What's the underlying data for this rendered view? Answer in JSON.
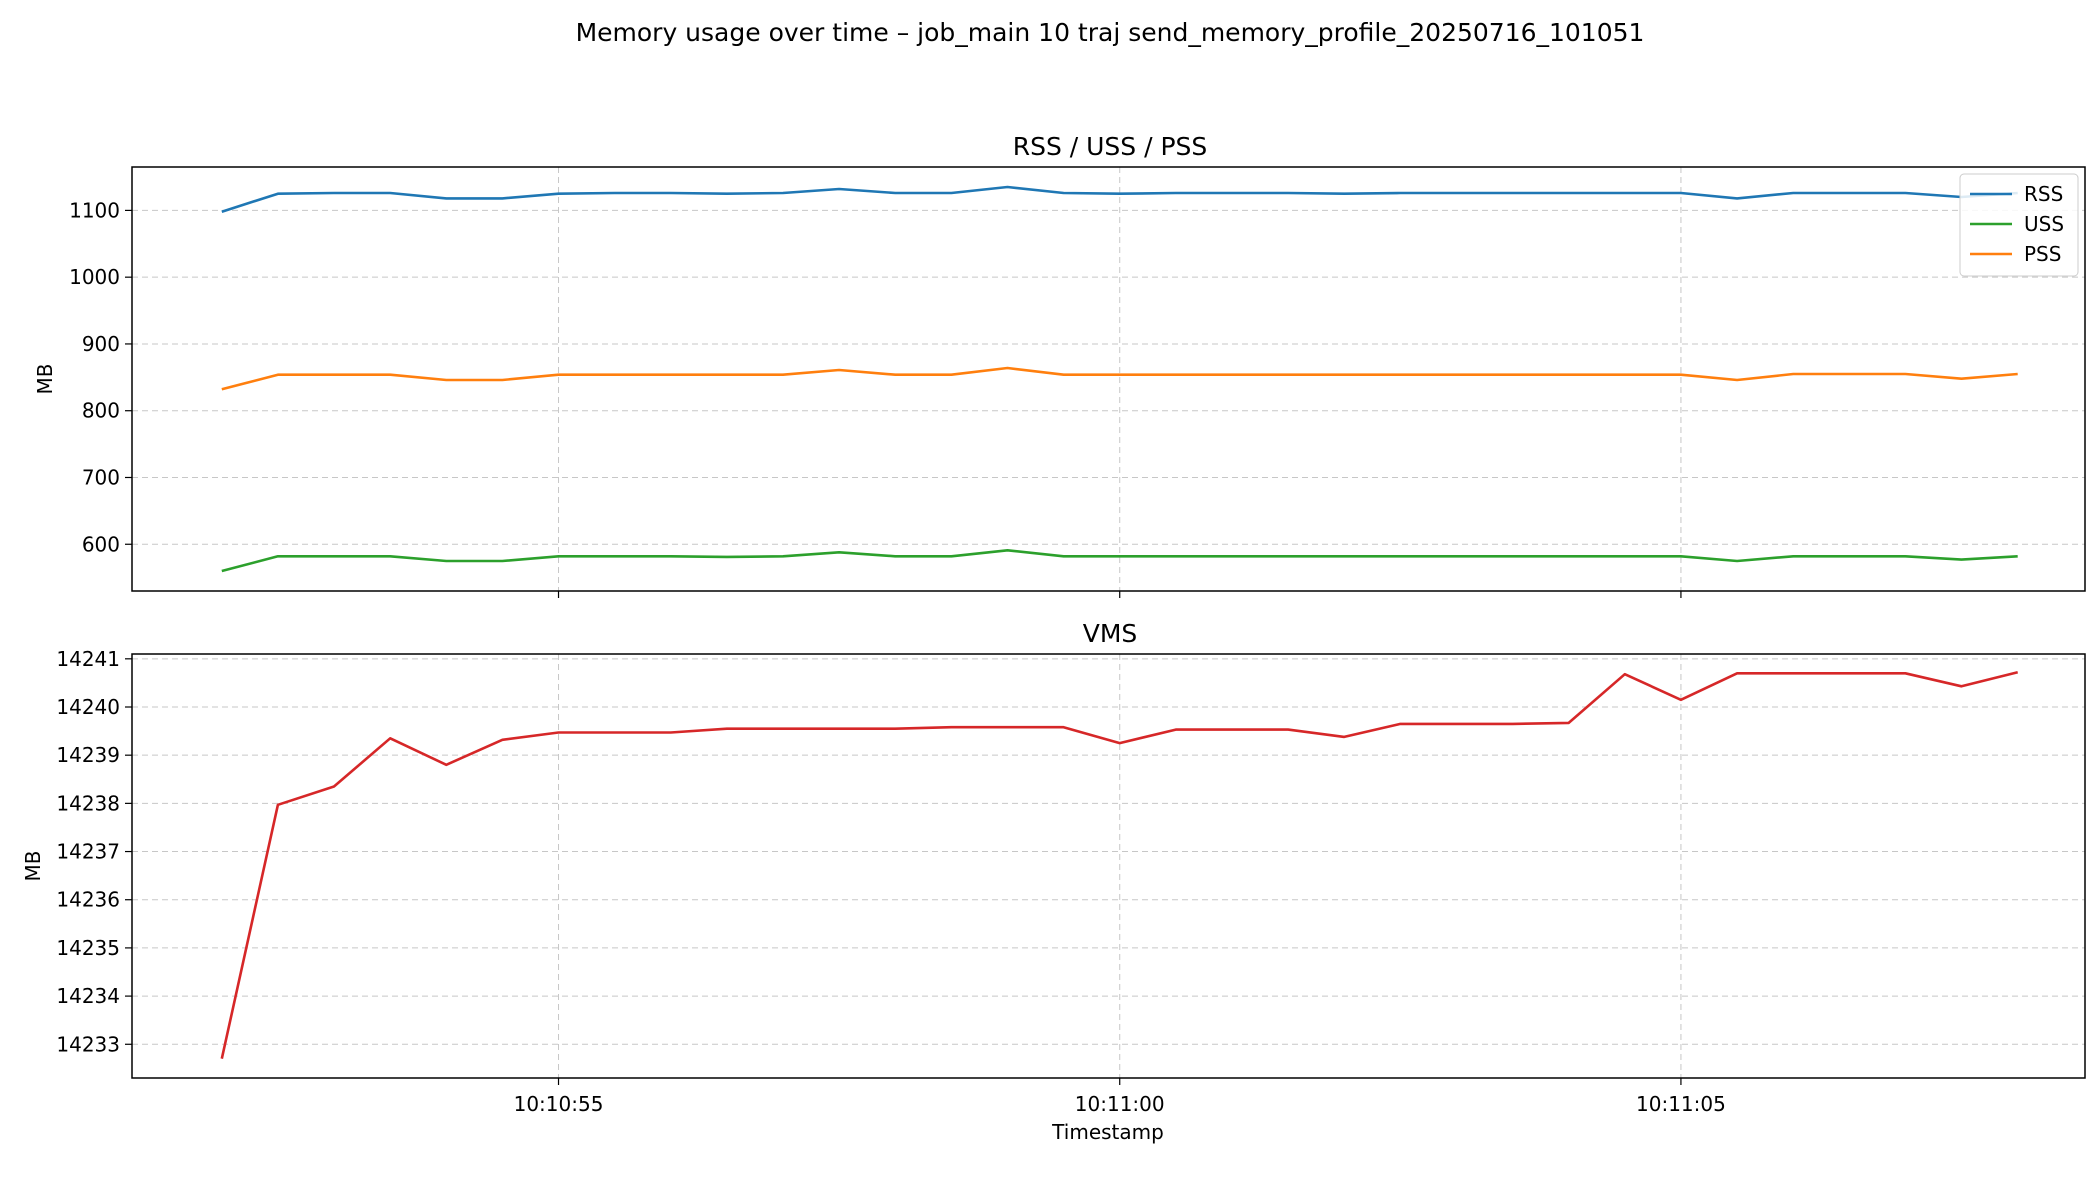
{
  "figure": {
    "suptitle": "Memory usage over time – job_main 10 traj send_memory_profile_20250716_101051",
    "xlabel": "Timestamp"
  },
  "chart_data": [
    {
      "type": "line",
      "title": "RSS / USS / PSS",
      "xlabel": "",
      "ylabel": "MB",
      "xlim": [
        "10:10:51.2",
        "10:11:08.6"
      ],
      "ylim": [
        530,
        1165
      ],
      "yticks": [
        600,
        700,
        800,
        900,
        1000,
        1100
      ],
      "grid": true,
      "legend": "top-right",
      "x": [
        "10:10:52.0",
        "10:10:52.5",
        "10:10:53.0",
        "10:10:53.5",
        "10:10:54.0",
        "10:10:54.5",
        "10:10:55.0",
        "10:10:55.5",
        "10:10:56.0",
        "10:10:56.5",
        "10:10:57.0",
        "10:10:57.5",
        "10:10:58.0",
        "10:10:58.5",
        "10:10:59.0",
        "10:10:59.5",
        "10:11:00.0",
        "10:11:00.5",
        "10:11:01.0",
        "10:11:01.5",
        "10:11:02.0",
        "10:11:02.5",
        "10:11:03.0",
        "10:11:03.5",
        "10:11:04.0",
        "10:11:04.5",
        "10:11:05.0",
        "10:11:05.5",
        "10:11:06.0",
        "10:11:06.5",
        "10:11:07.0",
        "10:11:07.5",
        "10:11:08.0"
      ],
      "series": [
        {
          "name": "RSS",
          "color": "#1f77b4",
          "values": [
            1098,
            1125,
            1126,
            1126,
            1118,
            1118,
            1125,
            1126,
            1126,
            1125,
            1126,
            1132,
            1126,
            1126,
            1135,
            1126,
            1125,
            1126,
            1126,
            1126,
            1125,
            1126,
            1126,
            1126,
            1126,
            1126,
            1126,
            1118,
            1126,
            1126,
            1126,
            1120,
            1126
          ]
        },
        {
          "name": "USS",
          "color": "#2ca02c",
          "values": [
            560,
            582,
            582,
            582,
            575,
            575,
            582,
            582,
            582,
            581,
            582,
            588,
            582,
            582,
            591,
            582,
            582,
            582,
            582,
            582,
            582,
            582,
            582,
            582,
            582,
            582,
            582,
            575,
            582,
            582,
            582,
            577,
            582
          ]
        },
        {
          "name": "PSS",
          "color": "#ff7f0e",
          "values": [
            832,
            854,
            854,
            854,
            846,
            846,
            854,
            854,
            854,
            854,
            854,
            861,
            854,
            854,
            864,
            854,
            854,
            854,
            854,
            854,
            854,
            854,
            854,
            854,
            854,
            854,
            854,
            846,
            855,
            855,
            855,
            848,
            855
          ]
        }
      ]
    },
    {
      "type": "line",
      "title": "VMS",
      "xlabel": "Timestamp",
      "ylabel": "MB",
      "xlim": [
        "10:10:51.2",
        "10:11:08.6"
      ],
      "ylim": [
        14232.3,
        14241.1
      ],
      "yticks": [
        14233,
        14234,
        14235,
        14236,
        14237,
        14238,
        14239,
        14240,
        14241
      ],
      "xticks": [
        "10:10:55",
        "10:11:00",
        "10:11:05"
      ],
      "grid": true,
      "x": [
        "10:10:52.0",
        "10:10:52.5",
        "10:10:53.0",
        "10:10:53.5",
        "10:10:54.0",
        "10:10:54.5",
        "10:10:55.0",
        "10:10:55.5",
        "10:10:56.0",
        "10:10:56.5",
        "10:10:57.0",
        "10:10:57.5",
        "10:10:58.0",
        "10:10:58.5",
        "10:10:59.0",
        "10:10:59.5",
        "10:11:00.0",
        "10:11:00.5",
        "10:11:01.0",
        "10:11:01.5",
        "10:11:02.0",
        "10:11:02.5",
        "10:11:03.0",
        "10:11:03.5",
        "10:11:04.0",
        "10:11:04.5",
        "10:11:05.0",
        "10:11:05.5",
        "10:11:06.0",
        "10:11:06.5",
        "10:11:07.0",
        "10:11:07.5",
        "10:11:08.0"
      ],
      "series": [
        {
          "name": "",
          "color": "#d62728",
          "values": [
            14232.7,
            14237.97,
            14238.35,
            14239.35,
            14238.8,
            14239.32,
            14239.47,
            14239.47,
            14239.47,
            14239.55,
            14239.55,
            14239.55,
            14239.55,
            14239.58,
            14239.58,
            14239.58,
            14239.25,
            14239.53,
            14239.53,
            14239.53,
            14239.38,
            14239.65,
            14239.65,
            14239.65,
            14239.67,
            14240.68,
            14240.15,
            14240.7,
            14240.7,
            14240.7,
            14240.7,
            14240.43,
            14240.72
          ]
        }
      ]
    }
  ]
}
